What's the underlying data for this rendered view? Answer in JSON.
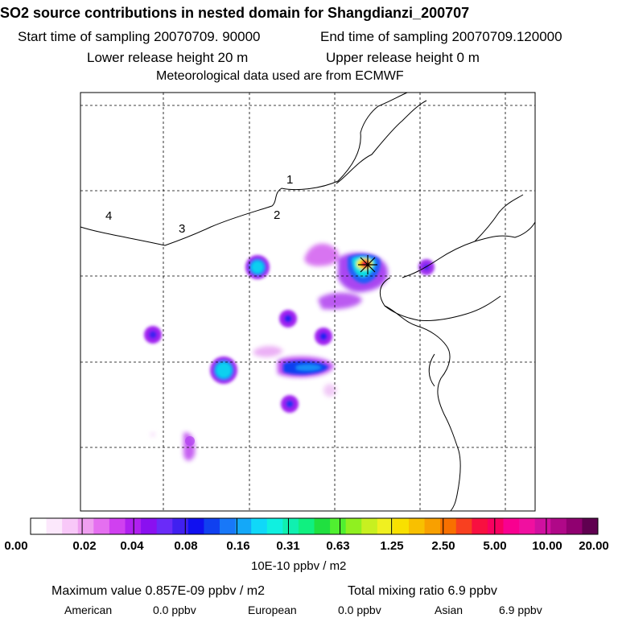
{
  "title": "SO2 source contributions in nested domain for Shangdianzi_200707",
  "sampling": {
    "start": "Start time of sampling 20070709. 90000",
    "end": "End time of sampling 20070709.120000"
  },
  "release": {
    "lower": "Lower release height   20 m",
    "upper": "Upper release height    0 m"
  },
  "meteo": "Meteorological data used are from ECMWF",
  "map": {
    "region_labels": [
      "1",
      "2",
      "3",
      "4"
    ],
    "colors": {
      "coast": "#000000",
      "grid": "#000000",
      "frame": "#000000"
    }
  },
  "legend": {
    "ticks": [
      "0.00",
      "0.02",
      "0.04",
      "0.08",
      "0.16",
      "0.31",
      "0.63",
      "1.25",
      "2.50",
      "5.00",
      "10.00",
      "20.00"
    ],
    "colors": [
      "#ffffff",
      "#fce8fc",
      "#f8c8f8",
      "#ef9ff0",
      "#e56ff0",
      "#d040f0",
      "#b020f0",
      "#8a10f0",
      "#6a2bf8",
      "#4020f0",
      "#1010f0",
      "#1040f0",
      "#1878f8",
      "#14a8f8",
      "#10d8f8",
      "#10f0e0",
      "#10f0b0",
      "#10f080",
      "#20e040",
      "#50f030",
      "#90f020",
      "#c8f020",
      "#f0f020",
      "#f8e000",
      "#f8c000",
      "#f8a000",
      "#f87000",
      "#f84020",
      "#f81040",
      "#f80060",
      "#f80090",
      "#f010a0",
      "#d010a0",
      "#b00888",
      "#900070",
      "#600050"
    ],
    "unit": "10E-10 ppbv / m2"
  },
  "stats": {
    "max": "Maximum value  0.857E-09 ppbv / m2",
    "total": "Total mixing ratio      6.9 ppbv",
    "american_label": "American",
    "american_value": "0.0 ppbv",
    "european_label": "European",
    "european_value": "0.0 ppbv",
    "asian_label": "Asian",
    "asian_value": "6.9 ppbv"
  }
}
